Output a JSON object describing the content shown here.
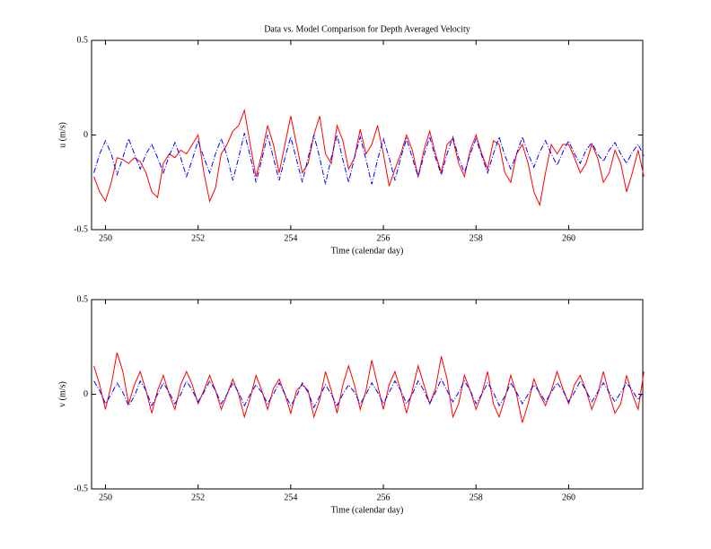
{
  "chart_data": [
    {
      "type": "line",
      "title": "Data vs. Model Comparison for Depth Averaged Velocity",
      "x_label": "Time (calendar day)",
      "y_label": "u (m/s)",
      "xlim": [
        249.7,
        261.6
      ],
      "ylim": [
        -0.5,
        0.5
      ],
      "xticks": [
        250,
        252,
        254,
        256,
        258,
        260
      ],
      "yticks": [
        -0.5,
        0,
        0.5
      ],
      "x": [
        249.75,
        249.875,
        250,
        250.125,
        250.25,
        250.375,
        250.5,
        250.625,
        250.75,
        250.875,
        251,
        251.125,
        251.25,
        251.375,
        251.5,
        251.625,
        251.75,
        251.875,
        252,
        252.125,
        252.25,
        252.375,
        252.5,
        252.625,
        252.75,
        252.875,
        253,
        253.125,
        253.25,
        253.375,
        253.5,
        253.625,
        253.75,
        253.875,
        254,
        254.125,
        254.25,
        254.375,
        254.5,
        254.625,
        254.75,
        254.875,
        255,
        255.125,
        255.25,
        255.375,
        255.5,
        255.625,
        255.75,
        255.875,
        256,
        256.125,
        256.25,
        256.375,
        256.5,
        256.625,
        256.75,
        256.875,
        257,
        257.125,
        257.25,
        257.375,
        257.5,
        257.625,
        257.75,
        257.875,
        258,
        258.125,
        258.25,
        258.375,
        258.5,
        258.625,
        258.75,
        258.875,
        259,
        259.125,
        259.25,
        259.375,
        259.5,
        259.625,
        259.75,
        259.875,
        260,
        260.125,
        260.25,
        260.375,
        260.5,
        260.625,
        260.75,
        260.875,
        261,
        261.125,
        261.25,
        261.375,
        261.5,
        261.625
      ],
      "series": [
        {
          "color": "#ff0000",
          "linestyle": "solid",
          "values": [
            -0.22,
            -0.3,
            -0.35,
            -0.25,
            -0.12,
            -0.13,
            -0.15,
            -0.12,
            -0.14,
            -0.2,
            -0.3,
            -0.33,
            -0.15,
            -0.1,
            -0.12,
            -0.08,
            -0.1,
            -0.05,
            0.0,
            -0.2,
            -0.35,
            -0.28,
            -0.1,
            -0.05,
            0.02,
            0.05,
            0.13,
            -0.05,
            -0.22,
            -0.1,
            0.05,
            -0.05,
            -0.2,
            -0.05,
            0.1,
            -0.05,
            -0.2,
            -0.15,
            0.0,
            0.1,
            -0.1,
            -0.15,
            0.05,
            -0.03,
            -0.18,
            -0.12,
            0.03,
            -0.1,
            -0.05,
            0.05,
            -0.1,
            -0.27,
            -0.18,
            -0.1,
            0.0,
            -0.08,
            -0.22,
            -0.08,
            0.02,
            -0.1,
            -0.2,
            -0.05,
            -0.02,
            -0.15,
            -0.22,
            -0.08,
            0.0,
            -0.1,
            -0.18,
            -0.03,
            -0.05,
            -0.2,
            -0.25,
            -0.1,
            -0.05,
            -0.15,
            -0.3,
            -0.37,
            -0.2,
            -0.05,
            -0.1,
            -0.05,
            -0.05,
            -0.12,
            -0.2,
            -0.15,
            -0.05,
            -0.12,
            -0.25,
            -0.2,
            -0.08,
            -0.15,
            -0.3,
            -0.2,
            -0.08,
            -0.22
          ]
        },
        {
          "color": "#0000ff",
          "linestyle": "dashdot",
          "values": [
            -0.2,
            -0.1,
            -0.03,
            -0.1,
            -0.21,
            -0.12,
            -0.02,
            -0.1,
            -0.18,
            -0.1,
            -0.05,
            -0.12,
            -0.2,
            -0.11,
            -0.04,
            -0.12,
            -0.22,
            -0.13,
            -0.03,
            -0.12,
            -0.2,
            -0.1,
            -0.02,
            -0.11,
            -0.24,
            -0.12,
            0.01,
            -0.11,
            -0.25,
            -0.13,
            0,
            -0.12,
            -0.24,
            -0.12,
            -0.01,
            -0.13,
            -0.25,
            -0.12,
            0,
            -0.12,
            -0.26,
            -0.12,
            0,
            -0.13,
            -0.25,
            -0.12,
            -0.01,
            -0.13,
            -0.26,
            -0.13,
            -0.02,
            -0.12,
            -0.24,
            -0.12,
            -0.02,
            -0.12,
            -0.22,
            -0.11,
            -0.01,
            -0.12,
            -0.21,
            -0.1,
            -0.01,
            -0.12,
            -0.2,
            -0.1,
            -0.02,
            -0.11,
            -0.2,
            -0.1,
            -0.01,
            -0.11,
            -0.18,
            -0.1,
            -0.01,
            -0.1,
            -0.17,
            -0.09,
            -0.03,
            -0.1,
            -0.16,
            -0.09,
            -0.03,
            -0.1,
            -0.15,
            -0.08,
            -0.04,
            -0.1,
            -0.14,
            -0.08,
            -0.04,
            -0.1,
            -0.15,
            -0.09,
            -0.05,
            -0.11
          ]
        }
      ]
    },
    {
      "type": "line",
      "x_label": "Time (calendar day)",
      "y_label": "v (m/s)",
      "xlim": [
        249.7,
        261.6
      ],
      "ylim": [
        -0.5,
        0.5
      ],
      "xticks": [
        250,
        252,
        254,
        256,
        258,
        260
      ],
      "yticks": [
        -0.5,
        0,
        0.5
      ],
      "x": [
        249.75,
        249.875,
        250,
        250.125,
        250.25,
        250.375,
        250.5,
        250.625,
        250.75,
        250.875,
        251,
        251.125,
        251.25,
        251.375,
        251.5,
        251.625,
        251.75,
        251.875,
        252,
        252.125,
        252.25,
        252.375,
        252.5,
        252.625,
        252.75,
        252.875,
        253,
        253.125,
        253.25,
        253.375,
        253.5,
        253.625,
        253.75,
        253.875,
        254,
        254.125,
        254.25,
        254.375,
        254.5,
        254.625,
        254.75,
        254.875,
        255,
        255.125,
        255.25,
        255.375,
        255.5,
        255.625,
        255.75,
        255.875,
        256,
        256.125,
        256.25,
        256.375,
        256.5,
        256.625,
        256.75,
        256.875,
        257,
        257.125,
        257.25,
        257.375,
        257.5,
        257.625,
        257.75,
        257.875,
        258,
        258.125,
        258.25,
        258.375,
        258.5,
        258.625,
        258.75,
        258.875,
        259,
        259.125,
        259.25,
        259.375,
        259.5,
        259.625,
        259.75,
        259.875,
        260,
        260.125,
        260.25,
        260.375,
        260.5,
        260.625,
        260.75,
        260.875,
        261,
        261.125,
        261.25,
        261.375,
        261.5,
        261.625
      ],
      "series": [
        {
          "color": "#ff0000",
          "linestyle": "solid",
          "values": [
            0.15,
            0.05,
            -0.08,
            0.05,
            0.22,
            0.12,
            -0.05,
            0.05,
            0.12,
            0.02,
            -0.1,
            0.02,
            0.1,
            0.0,
            -0.08,
            0.05,
            0.12,
            0.05,
            -0.05,
            0.02,
            0.1,
            0.02,
            -0.08,
            0.0,
            0.08,
            0.0,
            -0.12,
            -0.02,
            0.1,
            0.02,
            -0.08,
            0.03,
            0.08,
            0.0,
            -0.1,
            0.02,
            0.05,
            0.02,
            -0.12,
            -0.03,
            0.12,
            0.02,
            -0.1,
            0.05,
            0.15,
            0.05,
            -0.08,
            0.02,
            0.18,
            0.05,
            -0.08,
            0.05,
            0.12,
            0.02,
            -0.1,
            0.02,
            0.15,
            0.05,
            -0.05,
            0.03,
            0.2,
            0.08,
            -0.12,
            -0.05,
            0.1,
            0.02,
            -0.08,
            0.0,
            0.12,
            -0.05,
            -0.12,
            -0.02,
            0.1,
            0.0,
            -0.15,
            -0.05,
            0.08,
            0.0,
            -0.06,
            0.02,
            0.12,
            0.03,
            -0.05,
            0.05,
            0.1,
            0.02,
            -0.08,
            0.0,
            0.12,
            0.0,
            -0.1,
            -0.05,
            0.1,
            0.0,
            -0.08,
            0.12
          ]
        },
        {
          "color": "#0000ff",
          "linestyle": "dashdot",
          "values": [
            0.07,
            0.02,
            -0.05,
            0.0,
            0.06,
            0.01,
            -0.06,
            -0.01,
            0.07,
            0.02,
            -0.06,
            0.0,
            0.06,
            0.01,
            -0.05,
            0.0,
            0.07,
            0.02,
            -0.04,
            0.01,
            0.07,
            0.02,
            -0.05,
            0.0,
            0.06,
            0.01,
            -0.06,
            0.0,
            0.05,
            0.01,
            -0.05,
            0.0,
            0.06,
            0.0,
            -0.06,
            -0.01,
            0.06,
            0.01,
            -0.07,
            -0.01,
            0.05,
            0.0,
            -0.06,
            0.0,
            0.05,
            0.01,
            -0.05,
            0.0,
            0.06,
            0.01,
            -0.05,
            0.01,
            0.07,
            0.02,
            -0.05,
            0.0,
            0.07,
            0.02,
            -0.05,
            0.01,
            0.08,
            0.02,
            -0.04,
            0.01,
            0.07,
            0.02,
            -0.05,
            0.0,
            0.06,
            0.01,
            -0.06,
            -0.01,
            0.06,
            0.01,
            -0.05,
            0.0,
            0.05,
            0.01,
            -0.04,
            0.01,
            0.06,
            0.02,
            -0.04,
            0.01,
            0.07,
            0.02,
            -0.04,
            0.01,
            0.06,
            0.01,
            -0.04,
            0.01,
            0.06,
            0.02,
            -0.03,
            0.02
          ]
        }
      ]
    }
  ]
}
